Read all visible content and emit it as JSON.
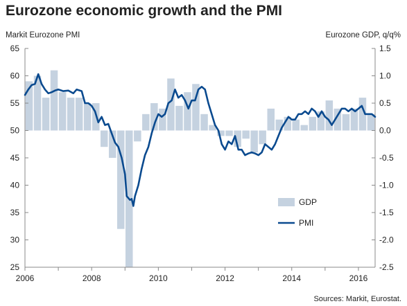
{
  "chart_data": {
    "type": "bar+line",
    "title": "Eurozone economic growth and the PMI",
    "left_axis_label": "Markit Eurozone PMI",
    "right_axis_label": "Eurozone GDP, q/q%",
    "source": "Sources: Markit, Eurostat.",
    "left_axis": {
      "min": 25,
      "max": 65,
      "ticks": [
        25,
        30,
        35,
        40,
        45,
        50,
        55,
        60,
        65
      ]
    },
    "right_axis": {
      "min": -2.5,
      "max": 1.5,
      "ticks": [
        "-2.5",
        "-2.0",
        "-1.5",
        "-1.0",
        "-0.5",
        "0.0",
        "0.5",
        "1.0",
        "1.5"
      ]
    },
    "x_axis": {
      "min": 2006.0,
      "max": 2016.5,
      "ticks": [
        "2006",
        "2008",
        "2010",
        "2012",
        "2014",
        "2016"
      ]
    },
    "legend": {
      "position": "bottom-right",
      "items": [
        {
          "label": "GDP",
          "color": "#c5d2e0"
        },
        {
          "label": "PMI",
          "color": "#0a4a8f"
        }
      ]
    },
    "colors": {
      "gdp_bar": "#c5d2e0",
      "pmi_line": "#0a4a8f",
      "axis": "#888888"
    },
    "gdp": [
      {
        "quarter": "2006 Q1",
        "value": 0.9
      },
      {
        "quarter": "2006 Q2",
        "value": 1.0
      },
      {
        "quarter": "2006 Q3",
        "value": 0.6
      },
      {
        "quarter": "2006 Q4",
        "value": 1.1
      },
      {
        "quarter": "2007 Q1",
        "value": 0.7
      },
      {
        "quarter": "2007 Q2",
        "value": 0.6
      },
      {
        "quarter": "2007 Q3",
        "value": 0.6
      },
      {
        "quarter": "2007 Q4",
        "value": 0.5
      },
      {
        "quarter": "2008 Q1",
        "value": 0.5
      },
      {
        "quarter": "2008 Q2",
        "value": -0.3
      },
      {
        "quarter": "2008 Q3",
        "value": -0.5
      },
      {
        "quarter": "2008 Q4",
        "value": -1.8
      },
      {
        "quarter": "2009 Q1",
        "value": -3.0
      },
      {
        "quarter": "2009 Q2",
        "value": -0.2
      },
      {
        "quarter": "2009 Q3",
        "value": 0.3
      },
      {
        "quarter": "2009 Q4",
        "value": 0.5
      },
      {
        "quarter": "2010 Q1",
        "value": 0.4
      },
      {
        "quarter": "2010 Q2",
        "value": 0.95
      },
      {
        "quarter": "2010 Q3",
        "value": 0.45
      },
      {
        "quarter": "2010 Q4",
        "value": 0.7
      },
      {
        "quarter": "2011 Q1",
        "value": 0.85
      },
      {
        "quarter": "2011 Q2",
        "value": 0.3
      },
      {
        "quarter": "2011 Q3",
        "value": 0.1
      },
      {
        "quarter": "2011 Q4",
        "value": -0.1
      },
      {
        "quarter": "2012 Q1",
        "value": -0.1
      },
      {
        "quarter": "2012 Q2",
        "value": -0.3
      },
      {
        "quarter": "2012 Q3",
        "value": -0.15
      },
      {
        "quarter": "2012 Q4",
        "value": -0.4
      },
      {
        "quarter": "2013 Q1",
        "value": -0.25
      },
      {
        "quarter": "2013 Q2",
        "value": 0.4
      },
      {
        "quarter": "2013 Q3",
        "value": 0.2
      },
      {
        "quarter": "2013 Q4",
        "value": 0.25
      },
      {
        "quarter": "2014 Q1",
        "value": 0.2
      },
      {
        "quarter": "2014 Q2",
        "value": 0.1
      },
      {
        "quarter": "2014 Q3",
        "value": 0.25
      },
      {
        "quarter": "2014 Q4",
        "value": 0.35
      },
      {
        "quarter": "2015 Q1",
        "value": 0.55
      },
      {
        "quarter": "2015 Q2",
        "value": 0.4
      },
      {
        "quarter": "2015 Q3",
        "value": 0.3
      },
      {
        "quarter": "2015 Q4",
        "value": 0.4
      },
      {
        "quarter": "2016 Q1",
        "value": 0.6
      },
      {
        "quarter": "2016 Q2",
        "value": 0.3
      }
    ],
    "pmi": [
      {
        "t": 2006.0,
        "v": 56.5
      },
      {
        "t": 2006.1,
        "v": 57.5
      },
      {
        "t": 2006.2,
        "v": 58.3
      },
      {
        "t": 2006.3,
        "v": 58.5
      },
      {
        "t": 2006.4,
        "v": 60.3
      },
      {
        "t": 2006.5,
        "v": 58.5
      },
      {
        "t": 2006.6,
        "v": 57.5
      },
      {
        "t": 2006.7,
        "v": 56.8
      },
      {
        "t": 2006.8,
        "v": 57.0
      },
      {
        "t": 2006.9,
        "v": 57.3
      },
      {
        "t": 2007.0,
        "v": 57.5
      },
      {
        "t": 2007.15,
        "v": 57.2
      },
      {
        "t": 2007.3,
        "v": 57.3
      },
      {
        "t": 2007.45,
        "v": 56.8
      },
      {
        "t": 2007.55,
        "v": 57.5
      },
      {
        "t": 2007.7,
        "v": 57.2
      },
      {
        "t": 2007.8,
        "v": 55.0
      },
      {
        "t": 2007.9,
        "v": 55.0
      },
      {
        "t": 2008.0,
        "v": 54.5
      },
      {
        "t": 2008.1,
        "v": 53.5
      },
      {
        "t": 2008.2,
        "v": 51.5
      },
      {
        "t": 2008.3,
        "v": 52.5
      },
      {
        "t": 2008.4,
        "v": 51.0
      },
      {
        "t": 2008.5,
        "v": 51.2
      },
      {
        "t": 2008.6,
        "v": 49.5
      },
      {
        "t": 2008.7,
        "v": 47.8
      },
      {
        "t": 2008.8,
        "v": 47.0
      },
      {
        "t": 2008.9,
        "v": 45.0
      },
      {
        "t": 2009.0,
        "v": 42.0
      },
      {
        "t": 2009.05,
        "v": 38.0
      },
      {
        "t": 2009.15,
        "v": 37.3
      },
      {
        "t": 2009.2,
        "v": 37.5
      },
      {
        "t": 2009.25,
        "v": 36.2
      },
      {
        "t": 2009.3,
        "v": 38.0
      },
      {
        "t": 2009.4,
        "v": 40.0
      },
      {
        "t": 2009.5,
        "v": 43.0
      },
      {
        "t": 2009.6,
        "v": 45.5
      },
      {
        "t": 2009.7,
        "v": 47.0
      },
      {
        "t": 2009.8,
        "v": 49.5
      },
      {
        "t": 2009.9,
        "v": 51.5
      },
      {
        "t": 2010.0,
        "v": 53.0
      },
      {
        "t": 2010.1,
        "v": 52.5
      },
      {
        "t": 2010.2,
        "v": 53.0
      },
      {
        "t": 2010.3,
        "v": 55.0
      },
      {
        "t": 2010.4,
        "v": 55.5
      },
      {
        "t": 2010.5,
        "v": 57.5
      },
      {
        "t": 2010.6,
        "v": 56.0
      },
      {
        "t": 2010.7,
        "v": 56.5
      },
      {
        "t": 2010.8,
        "v": 55.5
      },
      {
        "t": 2010.9,
        "v": 54.0
      },
      {
        "t": 2011.0,
        "v": 55.5
      },
      {
        "t": 2011.1,
        "v": 55.5
      },
      {
        "t": 2011.2,
        "v": 57.5
      },
      {
        "t": 2011.3,
        "v": 58.0
      },
      {
        "t": 2011.4,
        "v": 57.5
      },
      {
        "t": 2011.5,
        "v": 55.0
      },
      {
        "t": 2011.6,
        "v": 53.0
      },
      {
        "t": 2011.7,
        "v": 51.0
      },
      {
        "t": 2011.8,
        "v": 50.0
      },
      {
        "t": 2011.9,
        "v": 47.5
      },
      {
        "t": 2012.0,
        "v": 46.5
      },
      {
        "t": 2012.1,
        "v": 48.0
      },
      {
        "t": 2012.2,
        "v": 47.5
      },
      {
        "t": 2012.3,
        "v": 49.0
      },
      {
        "t": 2012.4,
        "v": 46.5
      },
      {
        "t": 2012.5,
        "v": 46.5
      },
      {
        "t": 2012.6,
        "v": 45.5
      },
      {
        "t": 2012.7,
        "v": 45.8
      },
      {
        "t": 2012.8,
        "v": 46.0
      },
      {
        "t": 2012.9,
        "v": 45.8
      },
      {
        "t": 2013.0,
        "v": 45.5
      },
      {
        "t": 2013.1,
        "v": 46.0
      },
      {
        "t": 2013.2,
        "v": 47.5
      },
      {
        "t": 2013.3,
        "v": 47.0
      },
      {
        "t": 2013.4,
        "v": 46.5
      },
      {
        "t": 2013.5,
        "v": 47.5
      },
      {
        "t": 2013.6,
        "v": 49.0
      },
      {
        "t": 2013.7,
        "v": 50.5
      },
      {
        "t": 2013.8,
        "v": 51.5
      },
      {
        "t": 2013.9,
        "v": 52.5
      },
      {
        "t": 2014.0,
        "v": 52.0
      },
      {
        "t": 2014.1,
        "v": 52.0
      },
      {
        "t": 2014.2,
        "v": 53.0
      },
      {
        "t": 2014.3,
        "v": 53.0
      },
      {
        "t": 2014.4,
        "v": 53.5
      },
      {
        "t": 2014.5,
        "v": 53.0
      },
      {
        "t": 2014.6,
        "v": 54.0
      },
      {
        "t": 2014.7,
        "v": 53.5
      },
      {
        "t": 2014.8,
        "v": 52.5
      },
      {
        "t": 2014.9,
        "v": 53.5
      },
      {
        "t": 2015.0,
        "v": 52.5
      },
      {
        "t": 2015.1,
        "v": 52.0
      },
      {
        "t": 2015.2,
        "v": 51.0
      },
      {
        "t": 2015.3,
        "v": 52.0
      },
      {
        "t": 2015.4,
        "v": 53.0
      },
      {
        "t": 2015.5,
        "v": 54.0
      },
      {
        "t": 2015.6,
        "v": 54.0
      },
      {
        "t": 2015.7,
        "v": 53.5
      },
      {
        "t": 2015.8,
        "v": 54.0
      },
      {
        "t": 2015.9,
        "v": 53.5
      },
      {
        "t": 2016.0,
        "v": 54.0
      },
      {
        "t": 2016.1,
        "v": 54.5
      },
      {
        "t": 2016.2,
        "v": 53.0
      },
      {
        "t": 2016.3,
        "v": 53.0
      },
      {
        "t": 2016.4,
        "v": 53.0
      },
      {
        "t": 2016.5,
        "v": 52.5
      }
    ]
  }
}
